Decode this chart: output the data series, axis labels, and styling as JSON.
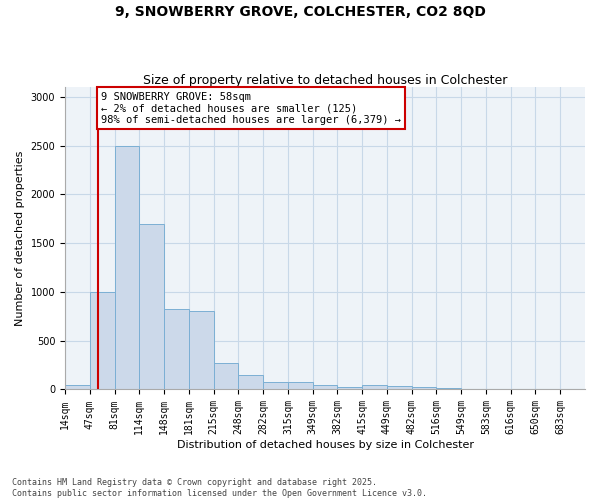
{
  "title": "9, SNOWBERRY GROVE, COLCHESTER, CO2 8QD",
  "subtitle": "Size of property relative to detached houses in Colchester",
  "xlabel": "Distribution of detached houses by size in Colchester",
  "ylabel": "Number of detached properties",
  "bin_labels": [
    "14sqm",
    "47sqm",
    "81sqm",
    "114sqm",
    "148sqm",
    "181sqm",
    "215sqm",
    "248sqm",
    "282sqm",
    "315sqm",
    "349sqm",
    "382sqm",
    "415sqm",
    "449sqm",
    "482sqm",
    "516sqm",
    "549sqm",
    "583sqm",
    "616sqm",
    "650sqm",
    "683sqm"
  ],
  "bar_heights": [
    50,
    1000,
    2500,
    1700,
    825,
    800,
    275,
    150,
    75,
    75,
    50,
    30,
    50,
    40,
    25,
    15,
    8,
    5,
    2,
    1,
    1
  ],
  "bar_facecolor": "#ccd9ea",
  "bar_edgecolor": "#7bafd4",
  "vline_x": 1.35,
  "vline_color": "#cc0000",
  "annotation_text": "9 SNOWBERRY GROVE: 58sqm\n← 2% of detached houses are smaller (125)\n98% of semi-detached houses are larger (6,379) →",
  "annotation_box_color": "#cc0000",
  "ylim": [
    0,
    3100
  ],
  "yticks": [
    0,
    500,
    1000,
    1500,
    2000,
    2500,
    3000
  ],
  "grid_color": "#c8d8e8",
  "bg_color": "#eef3f8",
  "footnote": "Contains HM Land Registry data © Crown copyright and database right 2025.\nContains public sector information licensed under the Open Government Licence v3.0.",
  "title_fontsize": 10,
  "subtitle_fontsize": 9,
  "axis_label_fontsize": 8,
  "tick_fontsize": 7,
  "annotation_fontsize": 7.5,
  "footnote_fontsize": 6
}
